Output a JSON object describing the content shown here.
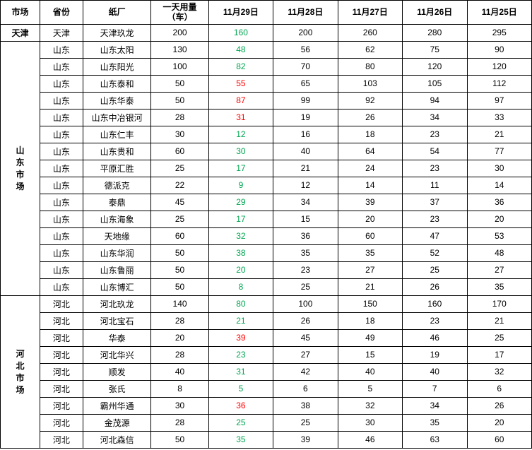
{
  "table": {
    "headers": {
      "market": "市场",
      "province": "省份",
      "factory": "纸厂",
      "daily_usage": "一天用量（车）",
      "date1": "11月29日",
      "date2": "11月28日",
      "date3": "11月27日",
      "date4": "11月26日",
      "date5": "11月25日"
    },
    "markets": {
      "tianjin": "天津",
      "shandong": "山东市场",
      "hebei": "河北市场"
    },
    "rows": [
      {
        "province": "天津",
        "factory": "天津玖龙",
        "daily": "200",
        "d1": "160",
        "d1c": "green",
        "d2": "200",
        "d3": "260",
        "d4": "280",
        "d5": "295"
      },
      {
        "province": "山东",
        "factory": "山东太阳",
        "daily": "130",
        "d1": "48",
        "d1c": "green",
        "d2": "56",
        "d3": "62",
        "d4": "75",
        "d5": "90"
      },
      {
        "province": "山东",
        "factory": "山东阳光",
        "daily": "100",
        "d1": "82",
        "d1c": "green",
        "d2": "70",
        "d3": "80",
        "d4": "120",
        "d5": "120"
      },
      {
        "province": "山东",
        "factory": "山东泰和",
        "daily": "50",
        "d1": "55",
        "d1c": "red",
        "d2": "65",
        "d3": "103",
        "d4": "105",
        "d5": "112"
      },
      {
        "province": "山东",
        "factory": "山东华泰",
        "daily": "50",
        "d1": "87",
        "d1c": "red",
        "d2": "99",
        "d3": "92",
        "d4": "94",
        "d5": "97"
      },
      {
        "province": "山东",
        "factory": "山东中冶银河",
        "daily": "28",
        "d1": "31",
        "d1c": "red",
        "d2": "19",
        "d3": "26",
        "d4": "34",
        "d5": "33"
      },
      {
        "province": "山东",
        "factory": "山东仁丰",
        "daily": "30",
        "d1": "12",
        "d1c": "green",
        "d2": "16",
        "d3": "18",
        "d4": "23",
        "d5": "21"
      },
      {
        "province": "山东",
        "factory": "山东贵和",
        "daily": "60",
        "d1": "30",
        "d1c": "green",
        "d2": "40",
        "d3": "64",
        "d4": "54",
        "d5": "77"
      },
      {
        "province": "山东",
        "factory": "平原汇胜",
        "daily": "25",
        "d1": "17",
        "d1c": "green",
        "d2": "21",
        "d3": "24",
        "d4": "23",
        "d5": "30"
      },
      {
        "province": "山东",
        "factory": "德派克",
        "daily": "22",
        "d1": "9",
        "d1c": "green",
        "d2": "12",
        "d3": "14",
        "d4": "11",
        "d5": "14"
      },
      {
        "province": "山东",
        "factory": "泰鼎",
        "daily": "45",
        "d1": "29",
        "d1c": "green",
        "d2": "34",
        "d3": "39",
        "d4": "37",
        "d5": "36"
      },
      {
        "province": "山东",
        "factory": "山东海象",
        "daily": "25",
        "d1": "17",
        "d1c": "green",
        "d2": "15",
        "d3": "20",
        "d4": "23",
        "d5": "20"
      },
      {
        "province": "山东",
        "factory": "天地缘",
        "daily": "60",
        "d1": "32",
        "d1c": "green",
        "d2": "36",
        "d3": "60",
        "d4": "47",
        "d5": "53"
      },
      {
        "province": "山东",
        "factory": "山东华润",
        "daily": "50",
        "d1": "38",
        "d1c": "green",
        "d2": "35",
        "d3": "35",
        "d4": "52",
        "d5": "48"
      },
      {
        "province": "山东",
        "factory": "山东鲁丽",
        "daily": "50",
        "d1": "20",
        "d1c": "green",
        "d2": "23",
        "d3": "27",
        "d4": "25",
        "d5": "27"
      },
      {
        "province": "山东",
        "factory": "山东博汇",
        "daily": "50",
        "d1": "8",
        "d1c": "green",
        "d2": "25",
        "d3": "21",
        "d4": "26",
        "d5": "35"
      },
      {
        "province": "河北",
        "factory": "河北玖龙",
        "daily": "140",
        "d1": "80",
        "d1c": "green",
        "d2": "100",
        "d3": "150",
        "d4": "160",
        "d5": "170"
      },
      {
        "province": "河北",
        "factory": "河北宝石",
        "daily": "28",
        "d1": "21",
        "d1c": "green",
        "d2": "26",
        "d3": "18",
        "d4": "23",
        "d5": "21"
      },
      {
        "province": "河北",
        "factory": "华泰",
        "daily": "20",
        "d1": "39",
        "d1c": "red",
        "d2": "45",
        "d3": "49",
        "d4": "46",
        "d5": "25"
      },
      {
        "province": "河北",
        "factory": "河北华兴",
        "daily": "28",
        "d1": "23",
        "d1c": "green",
        "d2": "27",
        "d3": "15",
        "d4": "19",
        "d5": "17"
      },
      {
        "province": "河北",
        "factory": "顺发",
        "daily": "40",
        "d1": "31",
        "d1c": "green",
        "d2": "42",
        "d3": "40",
        "d4": "40",
        "d5": "32"
      },
      {
        "province": "河北",
        "factory": "张氏",
        "daily": "8",
        "d1": "5",
        "d1c": "green",
        "d2": "6",
        "d3": "5",
        "d4": "7",
        "d5": "6"
      },
      {
        "province": "河北",
        "factory": "霸州华通",
        "daily": "30",
        "d1": "36",
        "d1c": "red",
        "d2": "38",
        "d3": "32",
        "d4": "34",
        "d5": "26"
      },
      {
        "province": "河北",
        "factory": "金茂源",
        "daily": "28",
        "d1": "25",
        "d1c": "green",
        "d2": "25",
        "d3": "30",
        "d4": "35",
        "d5": "20"
      },
      {
        "province": "河北",
        "factory": "河北森信",
        "daily": "50",
        "d1": "35",
        "d1c": "green",
        "d2": "39",
        "d3": "46",
        "d4": "63",
        "d5": "60"
      }
    ]
  }
}
